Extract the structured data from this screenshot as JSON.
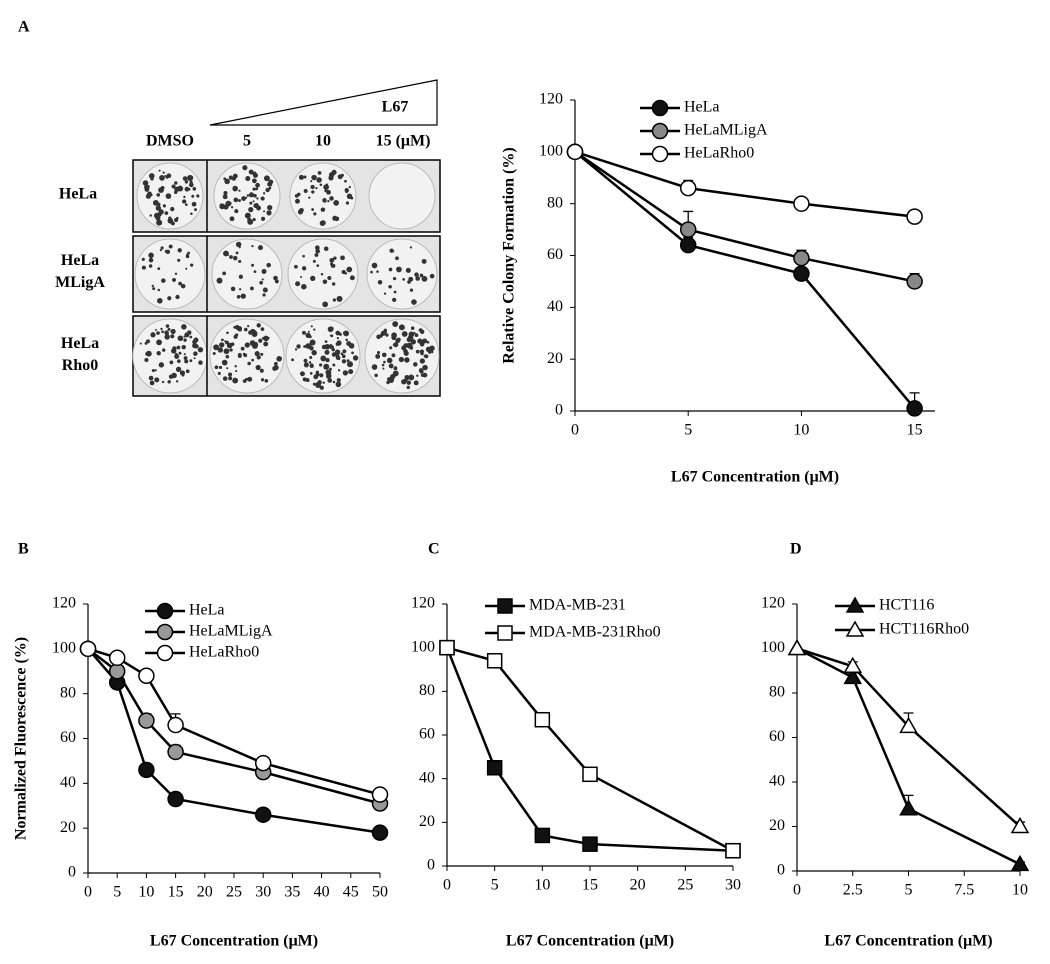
{
  "colony_image": {
    "title": "L67",
    "columns": [
      "DMSO",
      "5",
      "10",
      "15 (μM)"
    ],
    "rows": [
      "HeLa",
      "HeLa MLigA",
      "HeLa Rho0"
    ]
  },
  "chart_data": [
    {
      "type": "line",
      "panel": "A",
      "y_label": "Relative Colony Formation (%)",
      "x_label": "L67 Concentration (μM)",
      "x": [
        0,
        5,
        10,
        15
      ],
      "xlim": [
        0,
        15.9
      ],
      "xticks": [
        0,
        5,
        10,
        15
      ],
      "ylim": [
        0,
        120
      ],
      "yticks": [
        0,
        20,
        40,
        60,
        80,
        100,
        120
      ],
      "series": [
        {
          "name": "HeLa",
          "color": "#111111",
          "marker": "circle",
          "values": [
            100,
            64,
            53,
            1
          ],
          "errors": [
            0,
            3,
            4,
            6
          ]
        },
        {
          "name": "HeLaMLigA",
          "color": "#888888",
          "marker": "circle",
          "values": [
            100,
            70,
            59,
            50
          ],
          "errors": [
            0,
            7,
            3,
            3
          ]
        },
        {
          "name": "HeLaRho0",
          "color": "#ffffff",
          "marker": "circle",
          "values": [
            100,
            86,
            80,
            75
          ],
          "errors": [
            0,
            3,
            1,
            2
          ]
        }
      ]
    },
    {
      "type": "line",
      "panel": "B",
      "y_label": "Normalized Fluorescence (%)",
      "x_label": "L67 Concentration (μM)",
      "x": [
        0,
        5,
        10,
        15,
        30,
        50
      ],
      "xlim": [
        0,
        50
      ],
      "xticks": [
        0,
        5,
        10,
        15,
        20,
        25,
        30,
        35,
        40,
        45,
        50
      ],
      "ylim": [
        0,
        120
      ],
      "yticks": [
        0,
        20,
        40,
        60,
        80,
        100,
        120
      ],
      "series": [
        {
          "name": "HeLa",
          "color": "#111111",
          "marker": "circle",
          "values": [
            100,
            85,
            46,
            33,
            26,
            18
          ],
          "errors": [
            0,
            2,
            2,
            2,
            2,
            1
          ]
        },
        {
          "name": "HeLaMLigA",
          "color": "#999999",
          "marker": "circle",
          "values": [
            100,
            90,
            68,
            54,
            45,
            31
          ],
          "errors": [
            0,
            2,
            3,
            3,
            2,
            2
          ]
        },
        {
          "name": "HeLaRho0",
          "color": "#ffffff",
          "marker": "circle",
          "values": [
            100,
            96,
            88,
            66,
            49,
            35
          ],
          "errors": [
            0,
            1,
            2,
            5,
            2,
            2
          ]
        }
      ]
    },
    {
      "type": "line",
      "panel": "C",
      "x_label": "L67 Concentration (μM)",
      "x": [
        0,
        5,
        10,
        15,
        30
      ],
      "xlim": [
        0,
        30
      ],
      "xticks": [
        0,
        5,
        10,
        15,
        20,
        25,
        30
      ],
      "ylim": [
        0,
        120
      ],
      "yticks": [
        0,
        20,
        40,
        60,
        80,
        100,
        120
      ],
      "series": [
        {
          "name": "MDA-MB-231",
          "color": "#111111",
          "marker": "square",
          "values": [
            100,
            45,
            14,
            10,
            7
          ],
          "errors": [
            0,
            1,
            2,
            1,
            1
          ]
        },
        {
          "name": "MDA-MB-231Rho0",
          "color": "#ffffff",
          "marker": "square",
          "values": [
            100,
            94,
            67,
            42,
            7
          ],
          "errors": [
            0,
            1,
            3,
            1,
            2
          ]
        }
      ]
    },
    {
      "type": "line",
      "panel": "D",
      "x_label": "L67 Concentration (μM)",
      "x": [
        0,
        2.5,
        5,
        10
      ],
      "xlim": [
        0,
        10
      ],
      "xticks": [
        0,
        2.5,
        5,
        7.5,
        10
      ],
      "ylim": [
        0,
        120
      ],
      "yticks": [
        0,
        20,
        40,
        60,
        80,
        100,
        120
      ],
      "series": [
        {
          "name": "HCT116",
          "color": "#111111",
          "marker": "triangle",
          "values": [
            100,
            87,
            28,
            3
          ],
          "errors": [
            0,
            2,
            6,
            1
          ]
        },
        {
          "name": "HCT116Rho0",
          "color": "#ffffff",
          "marker": "triangle",
          "values": [
            100,
            92,
            65,
            20
          ],
          "errors": [
            0,
            2,
            6,
            2
          ]
        }
      ]
    }
  ]
}
